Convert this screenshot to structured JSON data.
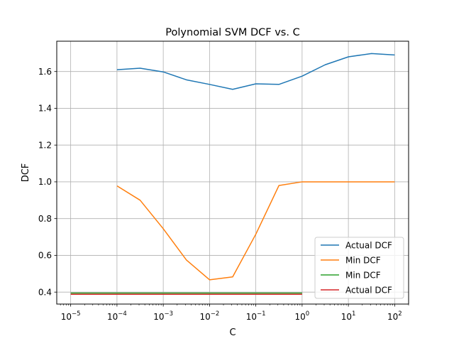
{
  "chart_data": {
    "type": "line",
    "title": "Polynomial SVM DCF vs. C",
    "xlabel": "C",
    "ylabel": "DCF",
    "xscale": "log",
    "xlim": [
      5e-06,
      200
    ],
    "ylim": [
      0.335,
      1.765
    ],
    "grid": true,
    "legend_position": "bottom-right",
    "x_ticks": [
      {
        "base": "10",
        "exp": "−5",
        "value": 1e-05
      },
      {
        "base": "10",
        "exp": "−4",
        "value": 0.0001
      },
      {
        "base": "10",
        "exp": "−3",
        "value": 0.001
      },
      {
        "base": "10",
        "exp": "−2",
        "value": 0.01
      },
      {
        "base": "10",
        "exp": "−1",
        "value": 0.1
      },
      {
        "base": "10",
        "exp": "0",
        "value": 1
      },
      {
        "base": "10",
        "exp": "1",
        "value": 10
      },
      {
        "base": "10",
        "exp": "2",
        "value": 100
      }
    ],
    "y_ticks": [
      {
        "label": "0.4",
        "value": 0.4
      },
      {
        "label": "0.6",
        "value": 0.6
      },
      {
        "label": "0.8",
        "value": 0.8
      },
      {
        "label": "1.0",
        "value": 1.0
      },
      {
        "label": "1.2",
        "value": 1.2
      },
      {
        "label": "1.4",
        "value": 1.4
      },
      {
        "label": "1.6",
        "value": 1.6
      }
    ],
    "series": [
      {
        "name": "Actual DCF",
        "color": "#1f77b4",
        "x": [
          0.0001,
          0.000316,
          0.001,
          0.00316,
          0.01,
          0.0316,
          0.1,
          0.316,
          1,
          3.16,
          10,
          31.6,
          100
        ],
        "values": [
          1.61,
          1.618,
          1.598,
          1.555,
          1.53,
          1.503,
          1.533,
          1.53,
          1.575,
          1.637,
          1.68,
          1.698,
          1.69
        ]
      },
      {
        "name": "Min DCF",
        "color": "#ff7f0e",
        "x": [
          0.0001,
          0.000316,
          0.001,
          0.00316,
          0.01,
          0.0316,
          0.1,
          0.316,
          1,
          3.16,
          10,
          31.6,
          100
        ],
        "values": [
          0.978,
          0.9,
          0.745,
          0.575,
          0.467,
          0.483,
          0.715,
          0.98,
          1.0,
          1.0,
          1.0,
          1.0,
          1.0
        ]
      },
      {
        "name": "Min DCF",
        "color": "#2ca02c",
        "x": [
          1e-05,
          0.0001,
          0.001,
          0.01,
          0.1,
          1
        ],
        "values": [
          0.395,
          0.395,
          0.395,
          0.395,
          0.395,
          0.395
        ]
      },
      {
        "name": "Actual DCF",
        "color": "#d62728",
        "x": [
          1e-05,
          0.0001,
          0.001,
          0.01,
          0.1,
          1
        ],
        "values": [
          0.388,
          0.388,
          0.388,
          0.388,
          0.388,
          0.388
        ]
      }
    ]
  }
}
